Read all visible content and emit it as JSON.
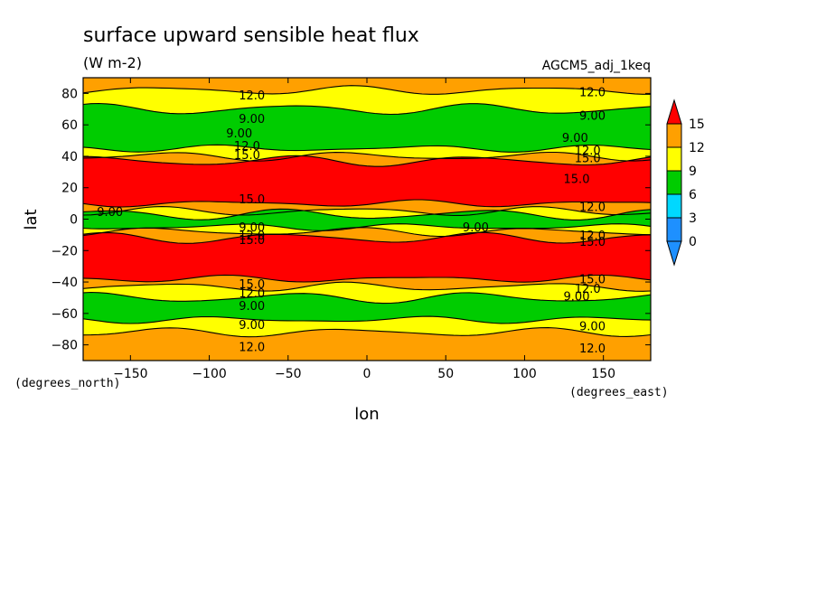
{
  "chart_data": {
    "type": "heatmap",
    "title": "surface upward sensible heat flux",
    "units": "(W m-2)",
    "run_label": "AGCM5_adj_1keq",
    "xlabel": "lon",
    "ylabel": "lat",
    "x_units": "(degrees_east)",
    "y_units": "(degrees_north)",
    "xlim": [
      -180,
      180
    ],
    "ylim": [
      -90,
      90
    ],
    "x_ticks": [
      -150,
      -100,
      -50,
      0,
      50,
      100,
      150
    ],
    "y_ticks": [
      -80,
      -60,
      -40,
      -20,
      0,
      20,
      40,
      60,
      80
    ],
    "levels": [
      0,
      3,
      6,
      9,
      12,
      15
    ],
    "level_colors": [
      "#1e90ff",
      "#00d8ff",
      "#00cc00",
      "#ffff00",
      "#ffa000",
      "#ff0000"
    ],
    "colorbar": {
      "labels": [
        "15",
        "12",
        "9",
        "6",
        "3",
        "0"
      ],
      "colors_top_to_bottom": [
        "#ff0000",
        "#ffa000",
        "#ffff00",
        "#00cc00",
        "#00d8ff",
        "#1e90ff"
      ]
    },
    "zonal_bands": [
      {
        "lat_from": 90,
        "lat_to": 82,
        "level": 12
      },
      {
        "lat_from": 82,
        "lat_to": 70,
        "level": 9
      },
      {
        "lat_from": 70,
        "lat_to": 45,
        "level": 6
      },
      {
        "lat_from": 45,
        "lat_to": 40,
        "level": 9
      },
      {
        "lat_from": 40,
        "lat_to": 37,
        "level": 12
      },
      {
        "lat_from": 37,
        "lat_to": 10,
        "level": 15
      },
      {
        "lat_from": 10,
        "lat_to": 5,
        "level": 12
      },
      {
        "lat_from": 5,
        "lat_to": 3,
        "level": 9
      },
      {
        "lat_from": 3,
        "lat_to": -5,
        "level": 6
      },
      {
        "lat_from": -5,
        "lat_to": -8,
        "level": 9
      },
      {
        "lat_from": -8,
        "lat_to": -12,
        "level": 12
      },
      {
        "lat_from": -12,
        "lat_to": -38,
        "level": 15
      },
      {
        "lat_from": -38,
        "lat_to": -43,
        "level": 12
      },
      {
        "lat_from": -43,
        "lat_to": -50,
        "level": 9
      },
      {
        "lat_from": -50,
        "lat_to": -64,
        "level": 6
      },
      {
        "lat_from": -64,
        "lat_to": -72,
        "level": 9
      },
      {
        "lat_from": -72,
        "lat_to": -90,
        "level": 12
      }
    ],
    "contour_labels": [
      {
        "text": "12.0",
        "lon": -73,
        "lat": 79
      },
      {
        "text": "12.0",
        "lon": 143,
        "lat": 81
      },
      {
        "text": "9.00",
        "lon": -73,
        "lat": 64
      },
      {
        "text": "9.00",
        "lon": 143,
        "lat": 66
      },
      {
        "text": "9.00",
        "lon": -81,
        "lat": 55
      },
      {
        "text": "9.00",
        "lon": 132,
        "lat": 52
      },
      {
        "text": "12.0",
        "lon": -76,
        "lat": 47
      },
      {
        "text": "12.0",
        "lon": 140,
        "lat": 44
      },
      {
        "text": "15.0",
        "lon": -76,
        "lat": 41
      },
      {
        "text": "15.0",
        "lon": 140,
        "lat": 39
      },
      {
        "text": "15.0",
        "lon": 133,
        "lat": 26
      },
      {
        "text": "15.0",
        "lon": -73,
        "lat": 13
      },
      {
        "text": "12.0",
        "lon": 143,
        "lat": 8
      },
      {
        "text": "9.00",
        "lon": -163,
        "lat": 5
      },
      {
        "text": "9.00",
        "lon": -73,
        "lat": -5
      },
      {
        "text": "9.00",
        "lon": 69,
        "lat": -5
      },
      {
        "text": "12.0",
        "lon": -73,
        "lat": -10
      },
      {
        "text": "12.0",
        "lon": 143,
        "lat": -10
      },
      {
        "text": "15.0",
        "lon": -73,
        "lat": -13
      },
      {
        "text": "15.0",
        "lon": 143,
        "lat": -14
      },
      {
        "text": "15.0",
        "lon": -73,
        "lat": -41
      },
      {
        "text": "15.0",
        "lon": 143,
        "lat": -38
      },
      {
        "text": "12.0",
        "lon": -73,
        "lat": -47
      },
      {
        "text": "12.0",
        "lon": 140,
        "lat": -44
      },
      {
        "text": "9.00",
        "lon": -73,
        "lat": -55
      },
      {
        "text": "9.00",
        "lon": 133,
        "lat": -49
      },
      {
        "text": "9.00",
        "lon": -73,
        "lat": -67
      },
      {
        "text": "9.00",
        "lon": 143,
        "lat": -68
      },
      {
        "text": "12.0",
        "lon": -73,
        "lat": -81
      },
      {
        "text": "12.0",
        "lon": 143,
        "lat": -82
      }
    ]
  }
}
